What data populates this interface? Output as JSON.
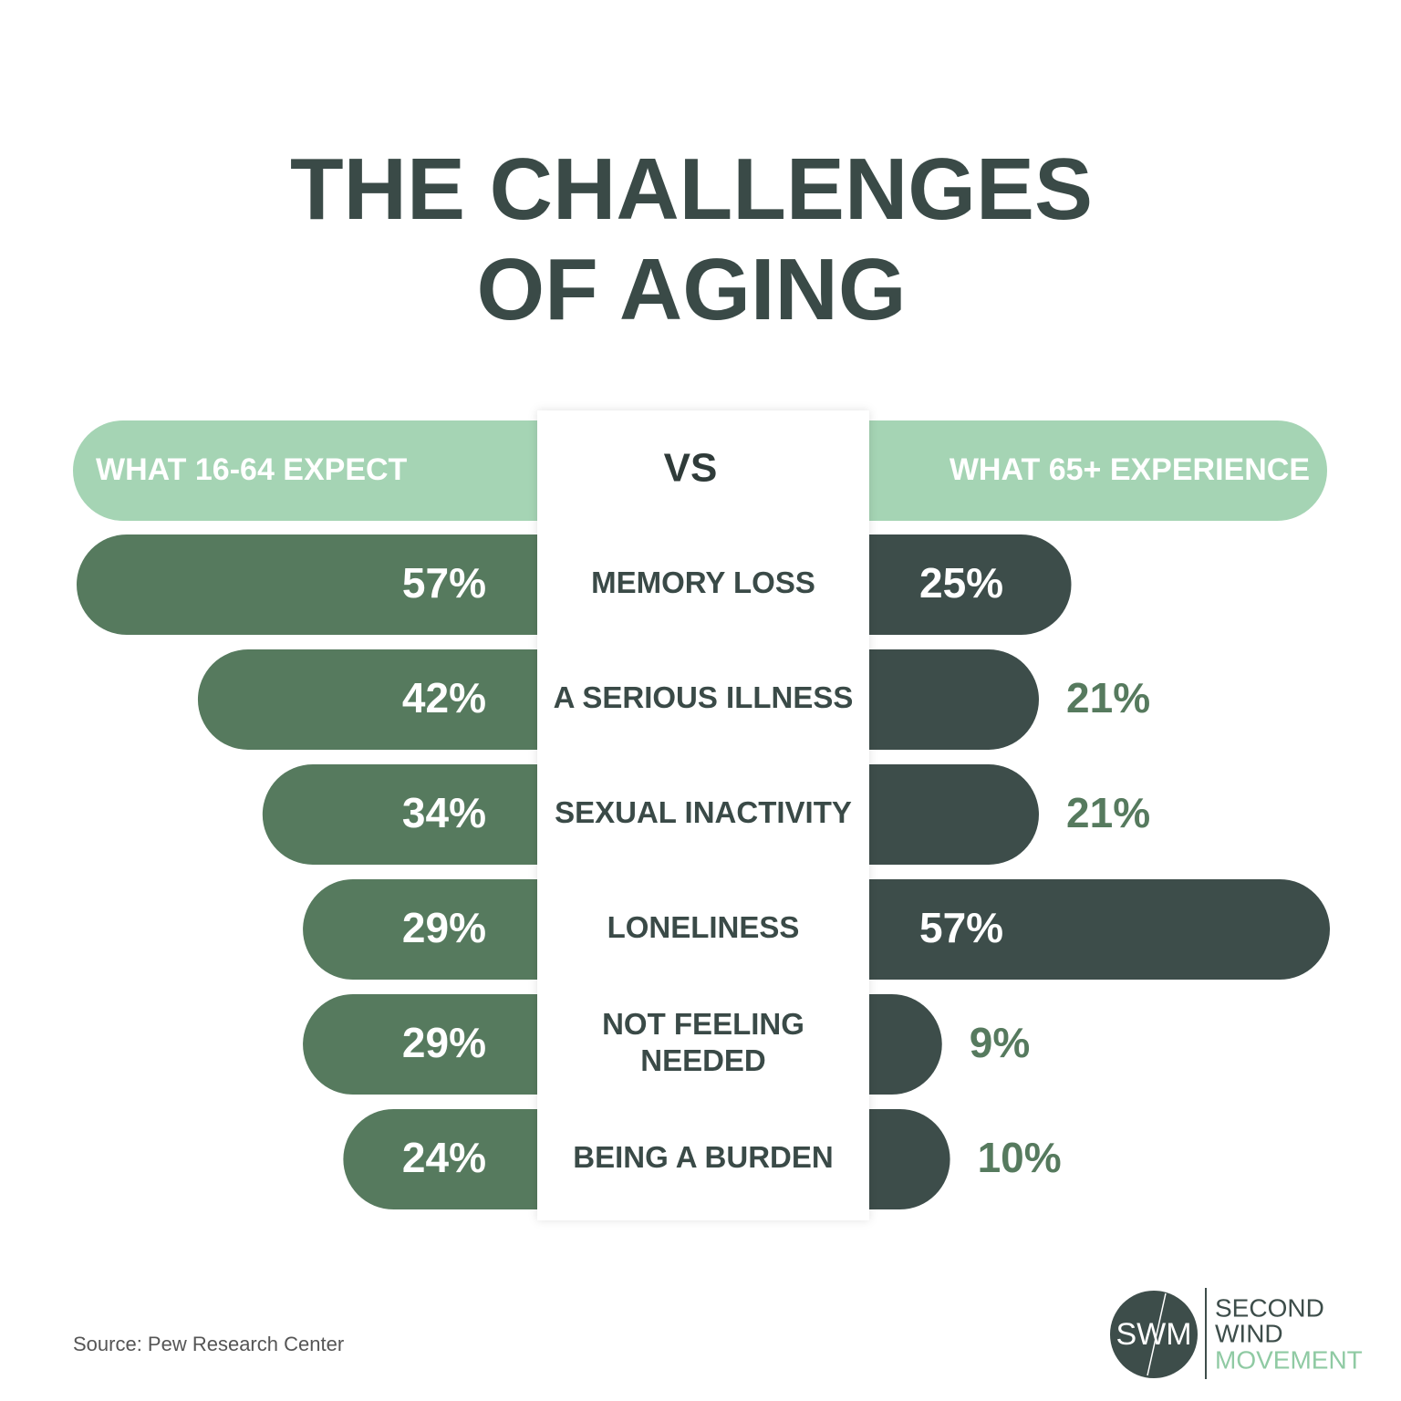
{
  "chart_data": {
    "type": "butterfly-bar",
    "title": "THE CHALLENGES OF AGING",
    "divider_label": "VS",
    "categories": [
      "MEMORY LOSS",
      "A SERIOUS ILLNESS",
      "SEXUAL INACTIVITY",
      "LONELINESS",
      "NOT FEELING NEEDED",
      "BEING A BURDEN"
    ],
    "header_color": "#a5d4b4",
    "series": [
      {
        "name": "WHAT 16-64 EXPECT",
        "color": "#567a5e",
        "values": [
          57,
          42,
          34,
          29,
          29,
          24
        ],
        "value_labels": [
          "57%",
          "42%",
          "34%",
          "29%",
          "29%",
          "24%"
        ]
      },
      {
        "name": "WHAT 65+ EXPERIENCE",
        "color": "#3d4d4a",
        "values": [
          25,
          21,
          21,
          57,
          9,
          10
        ],
        "value_labels": [
          "25%",
          "21%",
          "21%",
          "57%",
          "9%",
          "10%"
        ]
      }
    ],
    "source": "Source: Pew Research Center",
    "logo": {
      "mark": "SWM",
      "lines": [
        "SECOND",
        "WIND",
        "MOVEMENT"
      ]
    }
  }
}
